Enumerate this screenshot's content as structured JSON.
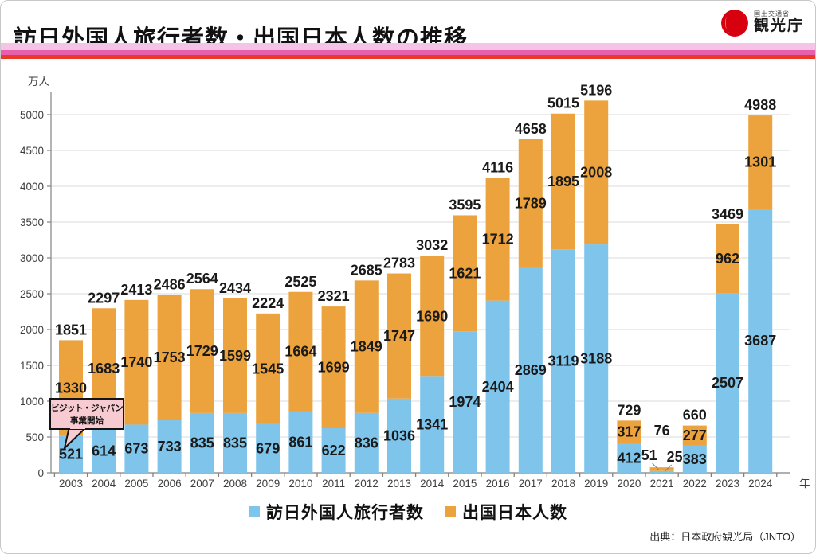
{
  "header": {
    "title": "訪日外国人旅行者数・出国日本人数の推移",
    "stripe_colors": [
      "#F5C3E6",
      "#E85FAB",
      "#E8392B"
    ],
    "logo": {
      "ministry": "国土交通省",
      "agency": "観光庁",
      "emblem_color": "#D7000F"
    }
  },
  "chart_data": {
    "type": "bar",
    "stacked": true,
    "title": "訪日外国人旅行者数・出国日本人数の推移",
    "unit_label": "万人",
    "x_axis_label": "年",
    "categories": [
      2003,
      2004,
      2005,
      2006,
      2007,
      2008,
      2009,
      2010,
      2011,
      2012,
      2013,
      2014,
      2015,
      2016,
      2017,
      2018,
      2019,
      2020,
      2021,
      2022,
      2023,
      2024
    ],
    "series": [
      {
        "name": "訪日外国人旅行者数",
        "color": "#7EC4EB",
        "values": [
          521,
          614,
          673,
          733,
          835,
          835,
          679,
          861,
          622,
          836,
          1036,
          1341,
          1974,
          2404,
          2869,
          3119,
          3188,
          412,
          25,
          383,
          2507,
          3687
        ]
      },
      {
        "name": "出国日本人数",
        "color": "#ECA33D",
        "values": [
          1330,
          1683,
          1740,
          1753,
          1729,
          1599,
          1545,
          1664,
          1699,
          1849,
          1747,
          1690,
          1621,
          1712,
          1789,
          1895,
          2008,
          317,
          51,
          277,
          962,
          1301
        ]
      }
    ],
    "totals": [
      1851,
      2297,
      2413,
      2486,
      2564,
      2434,
      2224,
      2525,
      2321,
      2685,
      2783,
      3032,
      3595,
      4116,
      4658,
      5015,
      5196,
      729,
      76,
      660,
      3469,
      4988
    ],
    "ylim": [
      0,
      5000
    ],
    "ytick_interval": 500,
    "yticks": [
      0,
      500,
      1000,
      1500,
      2000,
      2500,
      3000,
      3500,
      4000,
      4500,
      5000
    ],
    "grid": true,
    "legend_position": "bottom",
    "annotation": {
      "line1": "ビジット・ジャパン",
      "line2": "事業開始",
      "target_year": 2003,
      "box_color": "#F7CBD1"
    },
    "label_color": "#1a1a1a",
    "gridline_color": "#DBDBDB",
    "axis_color": "#8c8c8c"
  },
  "legend": {
    "items": [
      {
        "label": "訪日外国人旅行者数",
        "color": "#7EC4EB"
      },
      {
        "label": "出国日本人数",
        "color": "#ECA33D"
      }
    ]
  },
  "source": "出典：日本政府観光局（JNTO）"
}
